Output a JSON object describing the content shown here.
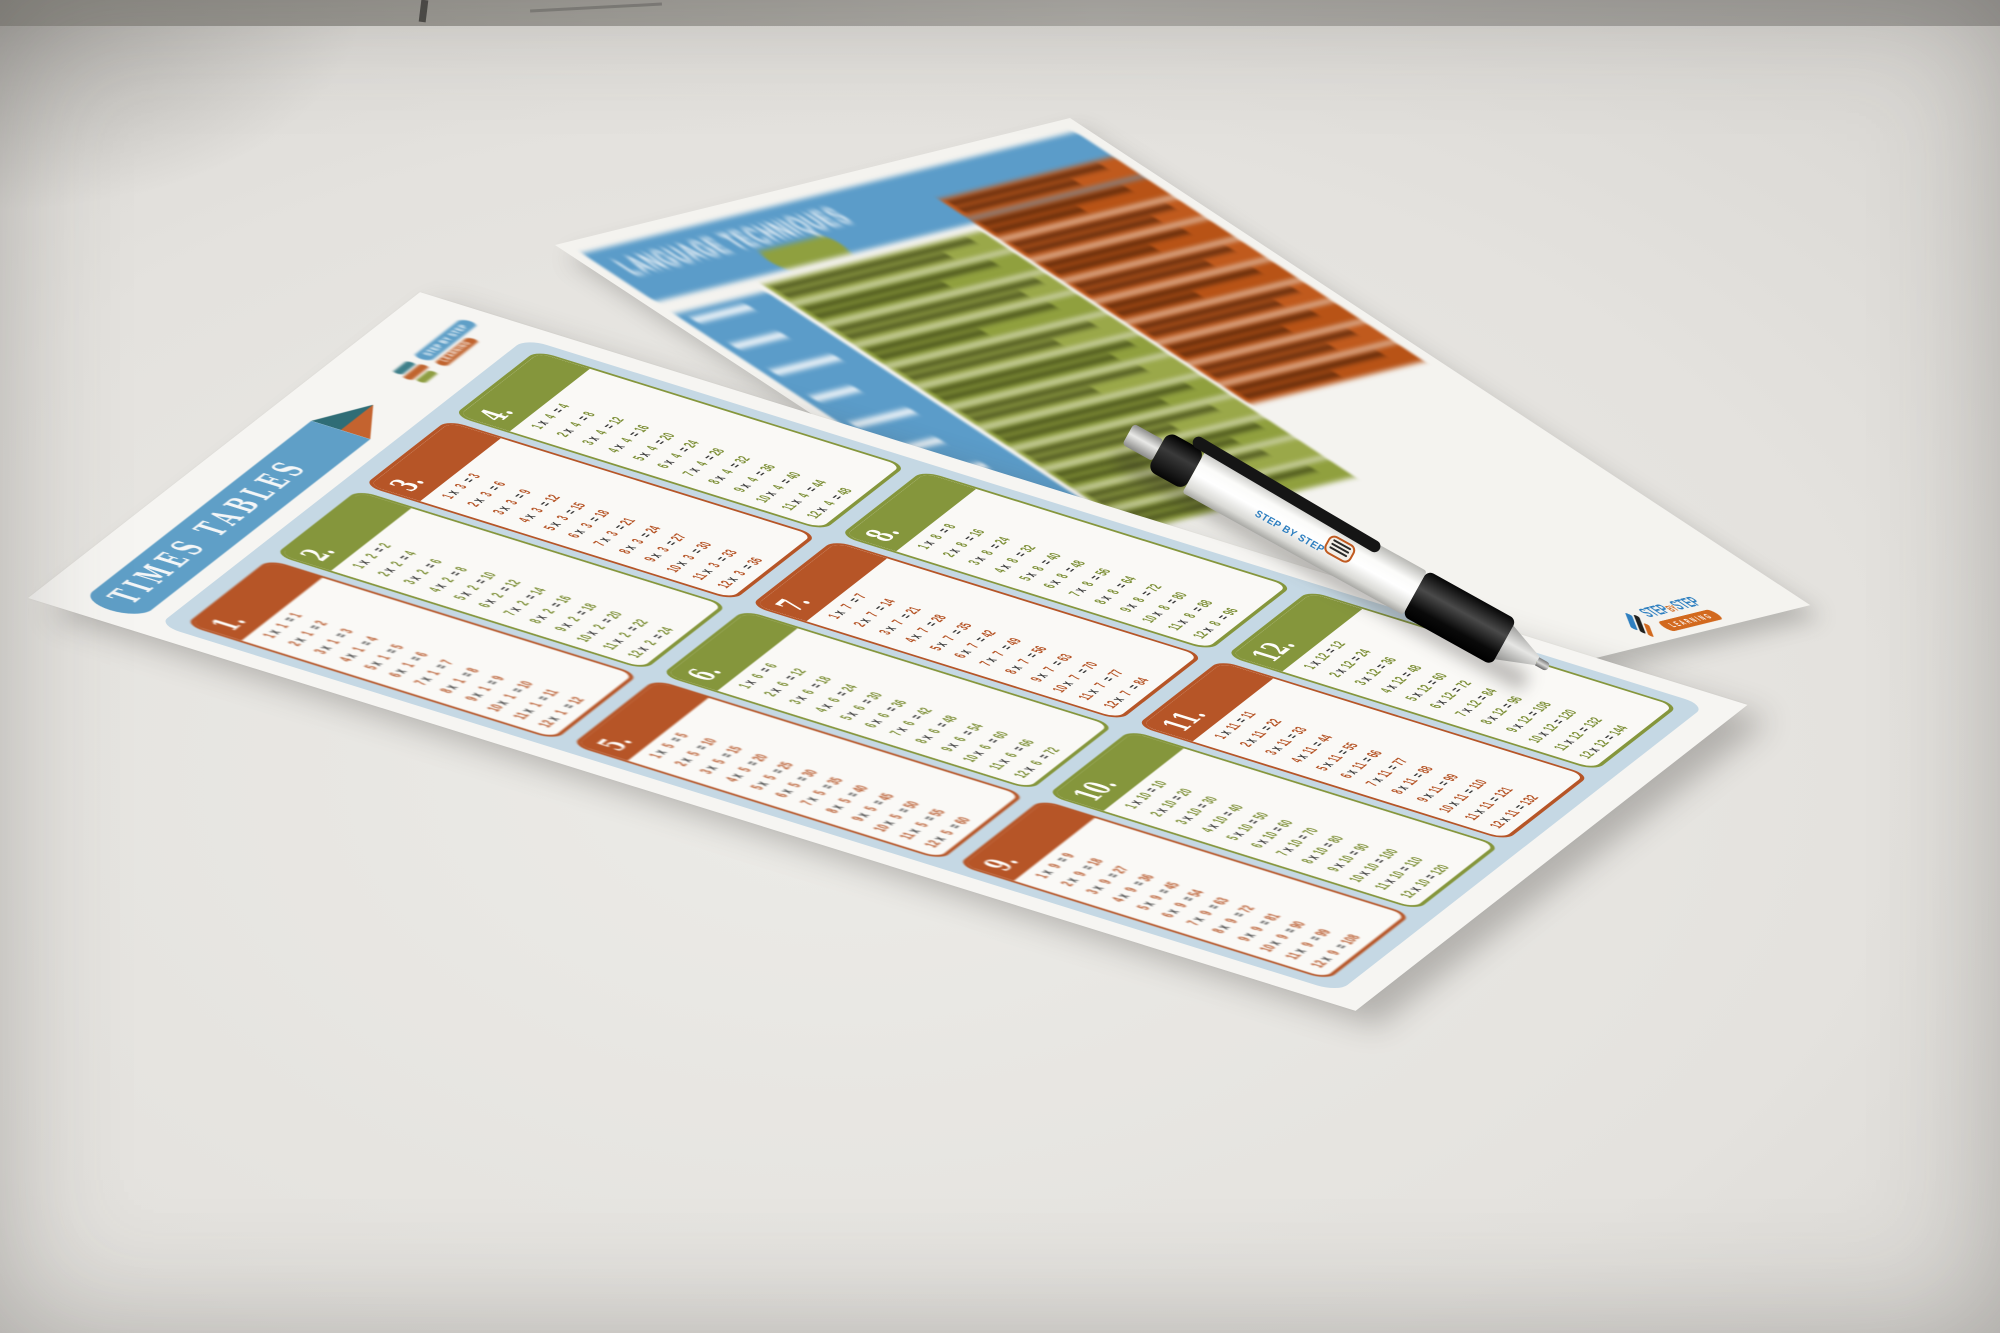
{
  "colors": {
    "banner_blue": "#5f9fc7",
    "panel_light_blue": "#c5d8e4",
    "orange": "#b65527",
    "green": "#85963c",
    "teal_pencil_tip": "#2f6d76",
    "language_blue": "#5b9cc9",
    "language_green": "#9aa849",
    "language_orange": "#c05a1d",
    "logo_blue": "#2e7fc0",
    "logo_orange": "#d2691e"
  },
  "times_sheet": {
    "title": "TIMES TABLES",
    "logo": {
      "step": "STEP",
      "by": "BY",
      "step2": "STEP",
      "learning": "LEARNING"
    },
    "tables": [
      {
        "label": "1.",
        "color": "orange",
        "rows": [
          "1 x 1 = 1",
          "2 x 1 = 2",
          "3 x 1 = 3",
          "4 x 1 = 4",
          "5 x 1 = 5",
          "6 x 1 = 6",
          "7 x 1 = 7",
          "8 x 1 = 8",
          "9 x 1 = 9",
          "10 x 1 = 10",
          "11 x 1 = 11",
          "12 x 1 = 12"
        ]
      },
      {
        "label": "2.",
        "color": "green",
        "rows": [
          "1 x 2 = 2",
          "2 x 2 = 4",
          "3 x 2 = 6",
          "4 x 2 = 8",
          "5 x 2 = 10",
          "6 x 2 = 12",
          "7 x 2 = 14",
          "8 x 2 = 16",
          "9 x 2 = 18",
          "10 x 2 = 20",
          "11 x 2 = 22",
          "12 x 2 = 24"
        ]
      },
      {
        "label": "3.",
        "color": "orange",
        "rows": [
          "1 x 3 = 3",
          "2 x 3 = 6",
          "3 x 3 = 9",
          "4 x 3 = 12",
          "5 x 3 = 15",
          "6 x 3 = 18",
          "7 x 3 = 21",
          "8 x 3 = 24",
          "9 x 3 = 27",
          "10 x 3 = 30",
          "11 x 3 = 33",
          "12 x 3 = 36"
        ]
      },
      {
        "label": "4.",
        "color": "green",
        "rows": [
          "1 x 4 = 4",
          "2 x 4 = 8",
          "3 x 4 = 12",
          "4 x 4 = 16",
          "5 x 4 = 20",
          "6 x 4 = 24",
          "7 x 4 = 28",
          "8 x 4 = 32",
          "9 x 4 = 36",
          "10 x 4 = 40",
          "11 x 4 = 44",
          "12 x 4 = 48"
        ]
      },
      {
        "label": "5.",
        "color": "orange",
        "rows": [
          "1 x 5 = 5",
          "2 x 5 = 10",
          "3 x 5 = 15",
          "4 x 5 = 20",
          "5 x 5 = 25",
          "6 x 5 = 30",
          "7 x 5 = 35",
          "8 x 5 = 40",
          "9 x 5 = 45",
          "10 x 5 = 50",
          "11 x 5 = 55",
          "12 x 5 = 60"
        ]
      },
      {
        "label": "6.",
        "color": "green",
        "rows": [
          "1 x 6 = 6",
          "2 x 6 = 12",
          "3 x 6 = 18",
          "4 x 6 = 24",
          "5 x 6 = 30",
          "6 x 6 = 36",
          "7 x 6 = 42",
          "8 x 6 = 48",
          "9 x 6 = 54",
          "10 x 6 = 60",
          "11 x 6 = 66",
          "12 x 6 = 72"
        ]
      },
      {
        "label": "7.",
        "color": "orange",
        "rows": [
          "1 x 7 = 7",
          "2 x 7 = 14",
          "3 x 7 = 21",
          "4 x 7 = 28",
          "5 x 7 = 35",
          "6 x 7 = 42",
          "7 x 7 = 49",
          "8 x 7 = 56",
          "9 x 7 = 63",
          "10 x 7 = 70",
          "11 x 7 = 77",
          "12 x 7 = 84"
        ]
      },
      {
        "label": "8.",
        "color": "green",
        "rows": [
          "1 x 8 = 8",
          "2 x 8 = 16",
          "3 x 8 = 24",
          "4 x 8 = 32",
          "5 x 8 = 40",
          "6 x 8 = 48",
          "7 x 8 = 56",
          "8 x 8 = 64",
          "9 x 8 = 72",
          "10 x 8 = 80",
          "11 x 8 = 88",
          "12 x 8 = 96"
        ]
      },
      {
        "label": "9.",
        "color": "orange",
        "rows": [
          "1 x 9 = 9",
          "2 x 9 = 18",
          "3 x 9 = 27",
          "4 x 9 = 36",
          "5 x 9 = 45",
          "6 x 9 = 54",
          "7 x 9 = 63",
          "8 x 9 = 72",
          "9 x 9 = 81",
          "10 x 9 = 90",
          "11 x 9 = 99",
          "12 x 9 = 108"
        ]
      },
      {
        "label": "10.",
        "color": "green",
        "rows": [
          "1 x 10 = 10",
          "2 x 10 = 20",
          "3 x 10 = 30",
          "4 x 10 = 40",
          "5 x 10 = 50",
          "6 x 10 = 60",
          "7 x 10 = 70",
          "8 x 10 = 80",
          "9 x 10 = 90",
          "10 x 10 = 100",
          "11 x 10 = 110",
          "12 x 10 = 120"
        ]
      },
      {
        "label": "11.",
        "color": "orange",
        "rows": [
          "1 x 11 = 11",
          "2 x 11 = 22",
          "3 x 11 = 33",
          "4 x 11 = 44",
          "5 x 11 = 55",
          "6 x 11 = 66",
          "7 x 11 = 77",
          "8 x 11 = 88",
          "9 x 11 = 99",
          "10 x 11 = 110",
          "11 x 11 = 121",
          "12 x 11 = 132"
        ]
      },
      {
        "label": "12.",
        "color": "green",
        "rows": [
          "1 x 12 = 12",
          "2 x 12 = 24",
          "3 x 12 = 36",
          "4 x 12 = 48",
          "5 x 12 = 60",
          "6 x 12 = 72",
          "7 x 12 = 84",
          "8 x 12 = 96",
          "9 x 12 = 108",
          "10 x 12 = 120",
          "11 x 12 = 132",
          "12 x 12 = 144"
        ]
      }
    ]
  },
  "language_sheet": {
    "title": "LANGUAGE TECHNIQUES",
    "logo": {
      "step": "STEP",
      "by": "BY",
      "step2": "STEP",
      "learning": "LEARNING"
    }
  },
  "pen": {
    "brand": "STEP BY STEP"
  }
}
